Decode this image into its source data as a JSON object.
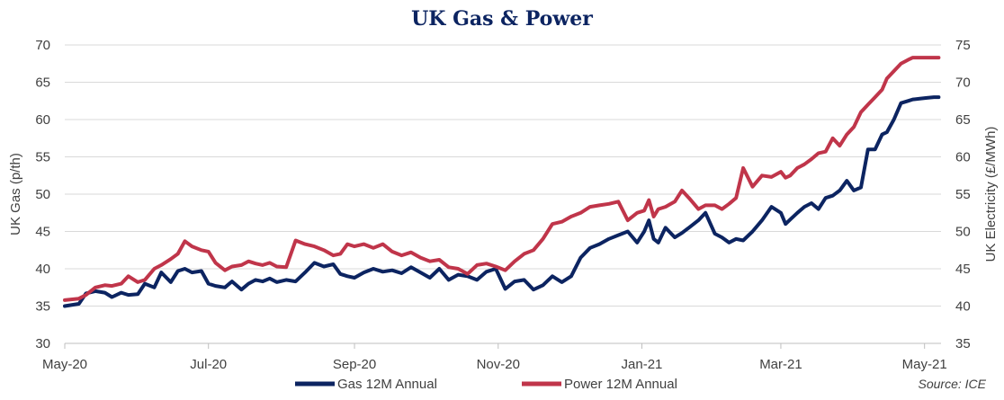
{
  "chart_data": {
    "type": "line",
    "title": "UK Gas & Power",
    "ylabel_left": "UK Gas (p/th)",
    "ylabel_right": "UK Electricity (£/MWh)",
    "ylim_left": [
      30,
      70
    ],
    "ylim_right": [
      35,
      75
    ],
    "yticks_left": [
      "30",
      "35",
      "40",
      "45",
      "50",
      "55",
      "60",
      "65",
      "70"
    ],
    "yticks_right": [
      "35",
      "40",
      "45",
      "50",
      "55",
      "60",
      "65",
      "70",
      "75"
    ],
    "x_ticks": [
      "May-20",
      "Jul-20",
      "Sep-20",
      "Nov-20",
      "Jan-21",
      "Mar-21",
      "May-21"
    ],
    "x_tick_dates": [
      "2020-05-01",
      "2020-07-01",
      "2020-09-01",
      "2020-11-01",
      "2021-01-01",
      "2021-03-01",
      "2021-05-01"
    ],
    "x_range": [
      "2020-05-01",
      "2021-05-08"
    ],
    "grid": "horizontal",
    "legend_position": "bottom",
    "source": "Source: ICE",
    "series": [
      {
        "name": "Gas 12M Annual",
        "axis": "left",
        "color": "#0c2461",
        "x": [
          "2020-05-01",
          "2020-05-07",
          "2020-05-10",
          "2020-05-14",
          "2020-05-18",
          "2020-05-21",
          "2020-05-25",
          "2020-05-28",
          "2020-06-01",
          "2020-06-04",
          "2020-06-08",
          "2020-06-11",
          "2020-06-15",
          "2020-06-18",
          "2020-06-21",
          "2020-06-24",
          "2020-06-28",
          "2020-07-01",
          "2020-07-04",
          "2020-07-08",
          "2020-07-11",
          "2020-07-15",
          "2020-07-18",
          "2020-07-21",
          "2020-07-24",
          "2020-07-27",
          "2020-07-30",
          "2020-08-03",
          "2020-08-07",
          "2020-08-11",
          "2020-08-15",
          "2020-08-19",
          "2020-08-23",
          "2020-08-26",
          "2020-08-29",
          "2020-09-01",
          "2020-09-05",
          "2020-09-09",
          "2020-09-13",
          "2020-09-17",
          "2020-09-21",
          "2020-09-25",
          "2020-09-29",
          "2020-10-03",
          "2020-10-07",
          "2020-10-11",
          "2020-10-15",
          "2020-10-19",
          "2020-10-23",
          "2020-10-27",
          "2020-10-31",
          "2020-11-04",
          "2020-11-08",
          "2020-11-12",
          "2020-11-16",
          "2020-11-20",
          "2020-11-24",
          "2020-11-28",
          "2020-12-02",
          "2020-12-06",
          "2020-12-10",
          "2020-12-14",
          "2020-12-18",
          "2020-12-22",
          "2020-12-26",
          "2020-12-30",
          "2021-01-02",
          "2021-01-04",
          "2021-01-06",
          "2021-01-08",
          "2021-01-11",
          "2021-01-15",
          "2021-01-18",
          "2021-01-21",
          "2021-01-25",
          "2021-01-28",
          "2021-02-01",
          "2021-02-04",
          "2021-02-07",
          "2021-02-10",
          "2021-02-13",
          "2021-02-17",
          "2021-02-21",
          "2021-02-25",
          "2021-03-01",
          "2021-03-03",
          "2021-03-05",
          "2021-03-08",
          "2021-03-11",
          "2021-03-14",
          "2021-03-17",
          "2021-03-20",
          "2021-03-23",
          "2021-03-26",
          "2021-03-29",
          "2021-04-01",
          "2021-04-04",
          "2021-04-07",
          "2021-04-10",
          "2021-04-13",
          "2021-04-15",
          "2021-04-18",
          "2021-04-21",
          "2021-04-24",
          "2021-04-26",
          "2021-04-29",
          "2021-05-02",
          "2021-05-05",
          "2021-05-07"
        ],
        "values": [
          35.0,
          35.3,
          36.7,
          37.0,
          36.8,
          36.2,
          36.8,
          36.5,
          36.6,
          38.0,
          37.5,
          39.5,
          38.2,
          39.7,
          40.0,
          39.5,
          39.7,
          38.0,
          37.7,
          37.5,
          38.3,
          37.2,
          38.0,
          38.5,
          38.3,
          38.7,
          38.2,
          38.5,
          38.3,
          39.5,
          40.8,
          40.3,
          40.6,
          39.3,
          39.0,
          38.8,
          39.5,
          40.0,
          39.6,
          39.8,
          39.4,
          40.2,
          39.5,
          38.8,
          40.0,
          38.5,
          39.2,
          39.0,
          38.5,
          39.6,
          40.0,
          37.3,
          38.3,
          38.5,
          37.2,
          37.8,
          39.0,
          38.2,
          39.0,
          41.5,
          42.8,
          43.3,
          44.0,
          44.5,
          45.0,
          43.5,
          45.0,
          46.5,
          44.0,
          43.5,
          45.5,
          44.2,
          44.8,
          45.5,
          46.5,
          47.5,
          44.7,
          44.2,
          43.5,
          44.0,
          43.8,
          45.0,
          46.5,
          48.3,
          47.5,
          46.0,
          46.6,
          47.5,
          48.3,
          48.8,
          48.0,
          49.5,
          49.8,
          50.5,
          51.8,
          50.5,
          50.9,
          56.0,
          56.0,
          58.0,
          58.3,
          60.0,
          62.2,
          62.5,
          62.7,
          62.8,
          62.9,
          63.0,
          63.0
        ]
      },
      {
        "name": "Power 12M Annual",
        "axis": "right",
        "color": "#c0354a",
        "x": [
          "2020-05-01",
          "2020-05-07",
          "2020-05-10",
          "2020-05-14",
          "2020-05-18",
          "2020-05-21",
          "2020-05-25",
          "2020-05-28",
          "2020-06-01",
          "2020-06-04",
          "2020-06-08",
          "2020-06-11",
          "2020-06-15",
          "2020-06-18",
          "2020-06-21",
          "2020-06-24",
          "2020-06-28",
          "2020-07-01",
          "2020-07-04",
          "2020-07-08",
          "2020-07-11",
          "2020-07-15",
          "2020-07-18",
          "2020-07-21",
          "2020-07-24",
          "2020-07-27",
          "2020-07-30",
          "2020-08-03",
          "2020-08-07",
          "2020-08-11",
          "2020-08-15",
          "2020-08-19",
          "2020-08-23",
          "2020-08-26",
          "2020-08-29",
          "2020-09-01",
          "2020-09-05",
          "2020-09-09",
          "2020-09-13",
          "2020-09-17",
          "2020-09-21",
          "2020-09-25",
          "2020-09-29",
          "2020-10-03",
          "2020-10-07",
          "2020-10-11",
          "2020-10-15",
          "2020-10-19",
          "2020-10-23",
          "2020-10-27",
          "2020-10-31",
          "2020-11-04",
          "2020-11-08",
          "2020-11-12",
          "2020-11-16",
          "2020-11-20",
          "2020-11-24",
          "2020-11-28",
          "2020-12-02",
          "2020-12-06",
          "2020-12-10",
          "2020-12-14",
          "2020-12-18",
          "2020-12-22",
          "2020-12-26",
          "2020-12-30",
          "2021-01-02",
          "2021-01-04",
          "2021-01-06",
          "2021-01-08",
          "2021-01-11",
          "2021-01-15",
          "2021-01-18",
          "2021-01-21",
          "2021-01-25",
          "2021-01-28",
          "2021-02-01",
          "2021-02-04",
          "2021-02-07",
          "2021-02-10",
          "2021-02-13",
          "2021-02-17",
          "2021-02-21",
          "2021-02-25",
          "2021-03-01",
          "2021-03-03",
          "2021-03-05",
          "2021-03-08",
          "2021-03-11",
          "2021-03-14",
          "2021-03-17",
          "2021-03-20",
          "2021-03-23",
          "2021-03-26",
          "2021-03-29",
          "2021-04-01",
          "2021-04-04",
          "2021-04-07",
          "2021-04-10",
          "2021-04-13",
          "2021-04-15",
          "2021-04-18",
          "2021-04-21",
          "2021-04-24",
          "2021-04-26",
          "2021-04-29",
          "2021-05-02",
          "2021-05-05",
          "2021-05-07"
        ],
        "values": [
          40.8,
          41.0,
          41.5,
          42.5,
          42.8,
          42.7,
          43.0,
          44.0,
          43.2,
          43.5,
          45.0,
          45.5,
          46.3,
          47.0,
          48.7,
          48.0,
          47.5,
          47.3,
          45.8,
          44.8,
          45.3,
          45.5,
          46.0,
          45.7,
          45.5,
          45.8,
          45.3,
          45.2,
          48.8,
          48.3,
          48.0,
          47.5,
          46.8,
          47.0,
          48.3,
          48.0,
          48.3,
          47.8,
          48.3,
          47.3,
          46.8,
          47.2,
          46.5,
          46.0,
          46.2,
          45.2,
          45.0,
          44.3,
          45.5,
          45.7,
          45.3,
          44.8,
          46.0,
          47.0,
          47.5,
          49.0,
          51.0,
          51.3,
          52.0,
          52.5,
          53.3,
          53.5,
          53.7,
          54.0,
          51.5,
          52.5,
          52.8,
          54.2,
          52.0,
          53.0,
          53.3,
          54.0,
          55.5,
          54.5,
          53.0,
          53.5,
          53.5,
          53.0,
          53.7,
          54.5,
          58.5,
          56.0,
          57.5,
          57.3,
          58.0,
          57.2,
          57.5,
          58.5,
          59.0,
          59.7,
          60.5,
          60.7,
          62.5,
          61.5,
          63.0,
          64.0,
          66.0,
          67.0,
          68.0,
          69.0,
          70.5,
          71.5,
          72.5,
          73.0,
          73.3,
          73.3,
          73.3,
          73.3,
          73.3
        ]
      }
    ]
  }
}
